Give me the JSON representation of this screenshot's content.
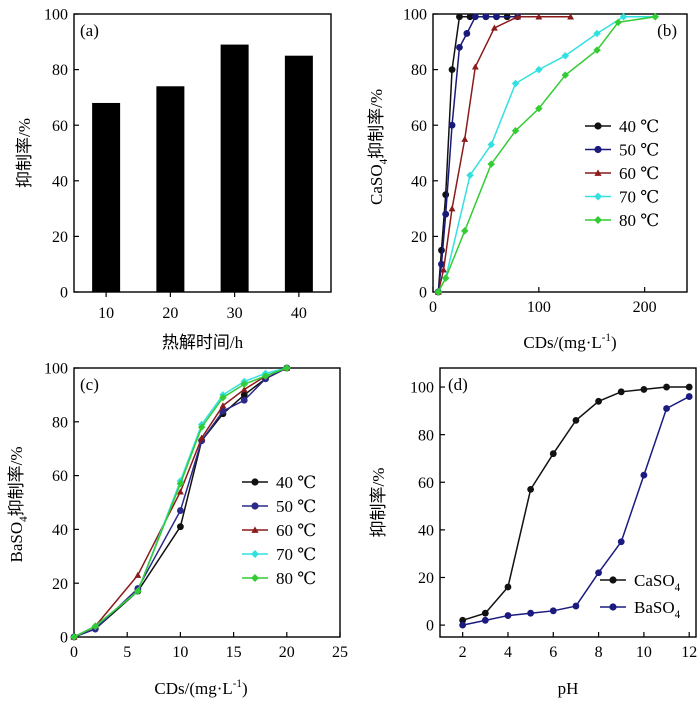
{
  "chart_data": [
    {
      "panel": "(a)",
      "type": "bar",
      "xlabel": "热解时间/h",
      "ylabel": "抑制率/%",
      "categories": [
        "10",
        "20",
        "30",
        "40"
      ],
      "values": [
        68,
        74,
        89,
        85
      ],
      "ylim": [
        0,
        100
      ],
      "yticks": [
        0,
        20,
        40,
        60,
        80,
        100
      ],
      "bar_color": "#000000",
      "grid": false
    },
    {
      "panel": "(b)",
      "type": "line",
      "xlabel_parts": [
        "CDs/(mg·L",
        "-1",
        ")"
      ],
      "ylabel_parts": [
        "CaSO",
        "4",
        "抑制率/%"
      ],
      "xlim": [
        0,
        240
      ],
      "ylim": [
        0,
        100
      ],
      "xticks": [
        0,
        100,
        200
      ],
      "yticks": [
        0,
        20,
        40,
        60,
        80,
        100
      ],
      "legend_position": "right",
      "grid": false,
      "series": [
        {
          "name": "40 ℃",
          "color": "#111111",
          "marker": "circle",
          "x": [
            5,
            8,
            12,
            18,
            25,
            35,
            50,
            60,
            70
          ],
          "y": [
            0,
            15,
            35,
            80,
            99,
            99,
            99,
            99,
            99
          ]
        },
        {
          "name": "50 ℃",
          "color": "#1a1a7a",
          "marker": "circle",
          "x": [
            5,
            8,
            12,
            18,
            25,
            32,
            40,
            50,
            60,
            80
          ],
          "y": [
            0,
            10,
            28,
            60,
            88,
            93,
            99,
            99,
            99,
            99
          ]
        },
        {
          "name": "60 ℃",
          "color": "#8b1a1a",
          "marker": "triangle",
          "x": [
            5,
            10,
            18,
            30,
            40,
            58,
            80,
            100,
            130
          ],
          "y": [
            0,
            8,
            30,
            55,
            81,
            95,
            99,
            99,
            99
          ]
        },
        {
          "name": "70 ℃",
          "color": "#33e0e0",
          "marker": "diamond",
          "x": [
            5,
            12,
            35,
            55,
            78,
            100,
            125,
            155,
            180,
            210
          ],
          "y": [
            0,
            5,
            42,
            53,
            75,
            80,
            85,
            93,
            99,
            99
          ]
        },
        {
          "name": "80 ℃",
          "color": "#33cc33",
          "marker": "diamond",
          "x": [
            5,
            12,
            30,
            55,
            78,
            100,
            125,
            155,
            175,
            210
          ],
          "y": [
            0,
            5,
            22,
            46,
            58,
            66,
            78,
            87,
            97,
            99
          ]
        }
      ]
    },
    {
      "panel": "(c)",
      "type": "line",
      "xlabel_parts": [
        "CDs/(mg·L",
        "-1",
        ")"
      ],
      "ylabel_parts": [
        "BaSO",
        "4",
        "抑制率/%"
      ],
      "xlim": [
        0,
        25
      ],
      "ylim": [
        0,
        100
      ],
      "xticks": [
        0,
        5,
        10,
        15,
        20,
        25
      ],
      "yticks": [
        0,
        20,
        40,
        60,
        80,
        100
      ],
      "legend_position": "center-right",
      "grid": false,
      "series": [
        {
          "name": "40 ℃",
          "color": "#111111",
          "marker": "circle",
          "x": [
            0,
            2,
            6,
            10,
            12,
            14,
            16,
            18,
            20
          ],
          "y": [
            0,
            3,
            17,
            41,
            73,
            83,
            90,
            96,
            100
          ]
        },
        {
          "name": "50 ℃",
          "color": "#2a2a8a",
          "marker": "circle",
          "x": [
            0,
            2,
            6,
            10,
            12,
            14,
            16,
            18,
            20
          ],
          "y": [
            0,
            3,
            18,
            47,
            73,
            84,
            88,
            96,
            100
          ]
        },
        {
          "name": "60 ℃",
          "color": "#8b1a1a",
          "marker": "triangle",
          "x": [
            0,
            2,
            6,
            10,
            12,
            14,
            16,
            18,
            20
          ],
          "y": [
            0,
            4,
            23,
            54,
            74,
            86,
            92,
            97,
            100
          ]
        },
        {
          "name": "70 ℃",
          "color": "#33e0e0",
          "marker": "diamond",
          "x": [
            0,
            2,
            6,
            10,
            12,
            14,
            16,
            18,
            20
          ],
          "y": [
            0,
            4,
            17,
            58,
            79,
            90,
            95,
            98,
            100
          ]
        },
        {
          "name": "80 ℃",
          "color": "#33cc33",
          "marker": "diamond",
          "x": [
            0,
            2,
            6,
            10,
            12,
            14,
            16,
            18,
            20
          ],
          "y": [
            0,
            4,
            17,
            57,
            78,
            89,
            94,
            97,
            100
          ]
        }
      ]
    },
    {
      "panel": "(d)",
      "type": "line",
      "xlabel": "pH",
      "ylabel": "抑制率/%",
      "xlim": [
        1,
        12.3
      ],
      "ylim": [
        -5,
        108
      ],
      "xticks": [
        2,
        4,
        6,
        8,
        10,
        12
      ],
      "yticks": [
        0,
        20,
        40,
        60,
        80,
        100
      ],
      "legend_position": "bottom-right",
      "grid": false,
      "series": [
        {
          "name_parts": [
            "CaSO",
            "4"
          ],
          "color": "#111111",
          "marker": "circle",
          "x": [
            2,
            3,
            4,
            5,
            6,
            7,
            8,
            9,
            10,
            11,
            12
          ],
          "y": [
            2,
            5,
            16,
            57,
            72,
            86,
            94,
            98,
            99,
            100,
            100
          ]
        },
        {
          "name_parts": [
            "BaSO",
            "4"
          ],
          "color": "#1a1a80",
          "marker": "circle",
          "x": [
            2,
            3,
            4,
            5,
            6,
            7,
            8,
            9,
            10,
            11,
            12
          ],
          "y": [
            0,
            2,
            4,
            5,
            6,
            8,
            22,
            35,
            63,
            91,
            96
          ]
        }
      ]
    }
  ]
}
